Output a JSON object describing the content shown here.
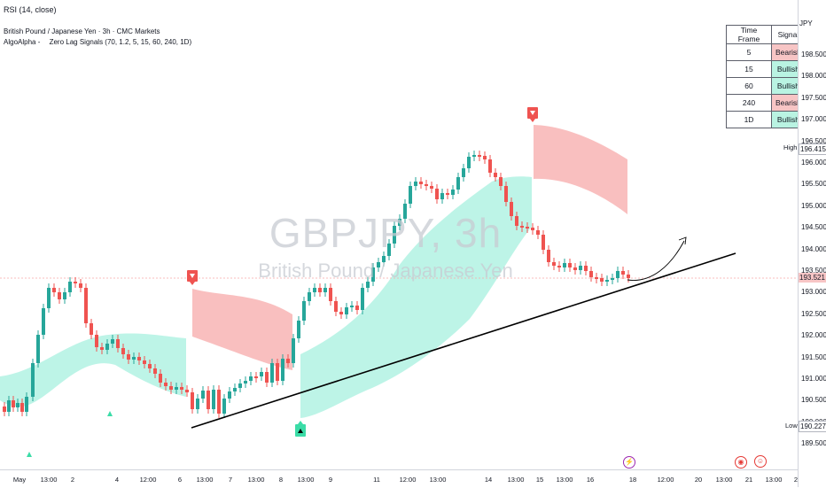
{
  "indicator_line": "RSI (14, close)",
  "legend": {
    "symbol_line": "British Pound / Japanese Yen · 3h · CMC Markets",
    "indicator_line": "AlgoAlpha -  Zero Lag Signals (70, 1.2, 5, 15, 60, 240, 1D)"
  },
  "watermark": {
    "ticker": "GBPJPY, 3h",
    "name": "British Pound / Japanese Yen"
  },
  "signal_table": {
    "headers": [
      "Time Frame",
      "Signal"
    ],
    "rows": [
      {
        "tf": "5",
        "signal": "Bearish"
      },
      {
        "tf": "15",
        "signal": "Bullish"
      },
      {
        "tf": "60",
        "signal": "Bullish"
      },
      {
        "tf": "240",
        "signal": "Bearish"
      },
      {
        "tf": "1D",
        "signal": "Bullish"
      }
    ]
  },
  "price_axis": {
    "currency": "JPY",
    "labels": [
      "198.500",
      "198.000",
      "197.500",
      "197.000",
      "196.500",
      "196.000",
      "195.500",
      "195.000",
      "194.500",
      "194.000",
      "193.500",
      "193.000",
      "192.500",
      "192.000",
      "191.500",
      "191.000",
      "190.500",
      "190.000",
      "189.500"
    ],
    "high": {
      "label": "High",
      "value": "196.415"
    },
    "current": {
      "value": "193.521"
    },
    "low": {
      "label": "Low",
      "value": "190.227"
    }
  },
  "time_axis": {
    "labels": [
      "May",
      "13:00",
      "2",
      "4",
      "12:00",
      "6",
      "13:00",
      "7",
      "13:00",
      "8",
      "13:00",
      "9",
      "11",
      "12:00",
      "13:00",
      "14",
      "13:00",
      "15",
      "13:00",
      "16",
      "18",
      "12:00",
      "20",
      "13:00",
      "21",
      "13:00",
      "2"
    ]
  },
  "events": {
    "lightning_icon": "⚡",
    "dot_icon": "◉",
    "face_icon": "☺"
  },
  "colors": {
    "bull": "#26a69a",
    "bear": "#ef5350",
    "bull_band": "#b2f2e3",
    "bear_band": "#f8b4b4",
    "price_line": "#f7a9a9"
  }
}
